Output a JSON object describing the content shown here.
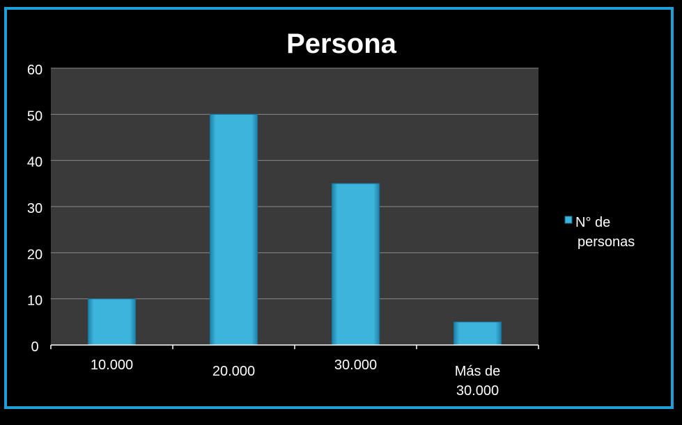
{
  "colors": {
    "frame": "#1E9FD8",
    "plot_background": "#3A3A3A",
    "bar": "#3CB4DC",
    "bar_dark": "#1E7FA6",
    "gridline": "#8A8A8A",
    "text": "#FFFFFF"
  },
  "chart_data": {
    "type": "bar",
    "title": "Persona",
    "xlabel": "",
    "ylabel": "",
    "categories": [
      [
        "10.000"
      ],
      [
        "20.000"
      ],
      [
        "30.000"
      ],
      [
        "Más de",
        "30.000"
      ]
    ],
    "series": [
      {
        "name": "N° de personas",
        "legend_lines": [
          "N° de",
          "personas"
        ],
        "values": [
          10,
          50,
          35,
          5
        ]
      }
    ],
    "ylim": [
      0,
      60
    ],
    "yticks": [
      "0",
      "10",
      "20",
      "30",
      "40",
      "50",
      "60"
    ],
    "grid": true,
    "legend_position": "right"
  }
}
